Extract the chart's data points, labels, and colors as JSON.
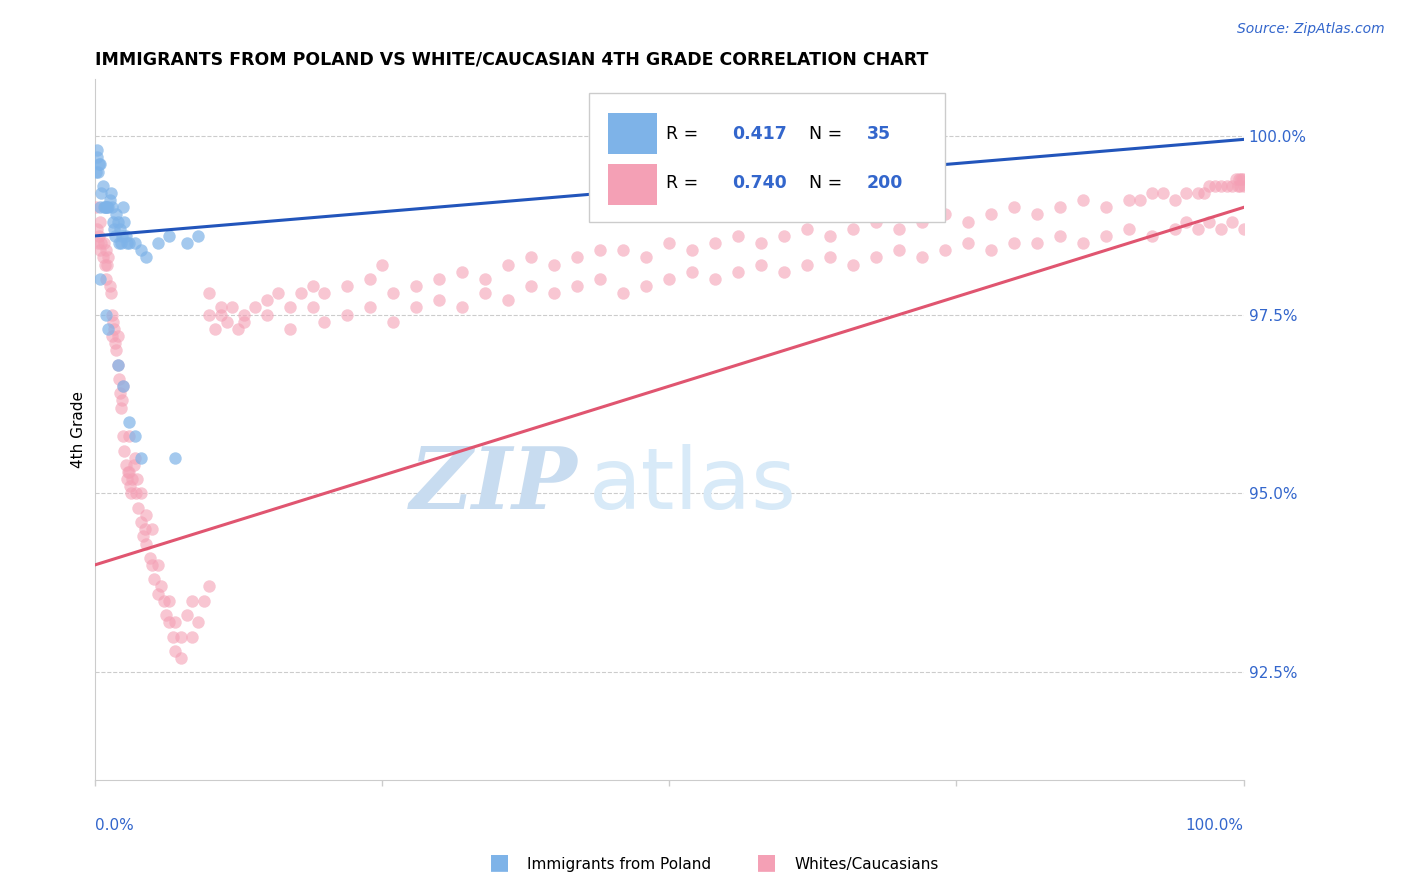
{
  "title": "IMMIGRANTS FROM POLAND VS WHITE/CAUCASIAN 4TH GRADE CORRELATION CHART",
  "source": "Source: ZipAtlas.com",
  "ylabel": "4th Grade",
  "ytick_labels": [
    "100.0%",
    "97.5%",
    "95.0%",
    "92.5%"
  ],
  "ytick_values": [
    100.0,
    97.5,
    95.0,
    92.5
  ],
  "xlim": [
    0.0,
    100.0
  ],
  "ylim": [
    91.0,
    100.8
  ],
  "legend_blue_R": "0.417",
  "legend_blue_N": "35",
  "legend_pink_R": "0.740",
  "legend_pink_N": "200",
  "legend_label_blue": "Immigrants from Poland",
  "legend_label_pink": "Whites/Caucasians",
  "blue_color": "#7EB3E8",
  "pink_color": "#F4A0B5",
  "blue_line_color": "#2255BB",
  "pink_line_color": "#E05570",
  "watermark_zip": "ZIP",
  "watermark_atlas": "atlas",
  "blue_scatter": [
    [
      0.2,
      99.8
    ],
    [
      0.3,
      99.5
    ],
    [
      0.4,
      99.6
    ],
    [
      0.45,
      99.6
    ],
    [
      0.5,
      99.0
    ],
    [
      0.6,
      99.2
    ],
    [
      0.7,
      99.3
    ],
    [
      0.8,
      99.0
    ],
    [
      0.9,
      99.0
    ],
    [
      1.0,
      99.0
    ],
    [
      1.1,
      99.0
    ],
    [
      1.2,
      99.0
    ],
    [
      1.3,
      99.1
    ],
    [
      1.4,
      99.2
    ],
    [
      1.5,
      99.0
    ],
    [
      1.6,
      98.8
    ],
    [
      1.7,
      98.7
    ],
    [
      1.8,
      98.6
    ],
    [
      1.9,
      98.9
    ],
    [
      2.0,
      98.8
    ],
    [
      2.1,
      98.5
    ],
    [
      2.2,
      98.7
    ],
    [
      2.3,
      98.5
    ],
    [
      2.4,
      98.6
    ],
    [
      2.5,
      99.0
    ],
    [
      2.6,
      98.8
    ],
    [
      2.7,
      98.6
    ],
    [
      2.8,
      98.5
    ],
    [
      3.0,
      98.5
    ],
    [
      3.5,
      98.5
    ],
    [
      4.0,
      98.4
    ],
    [
      4.5,
      98.3
    ],
    [
      5.5,
      98.5
    ],
    [
      6.5,
      98.6
    ],
    [
      7.0,
      95.5
    ],
    [
      8.0,
      98.5
    ],
    [
      9.0,
      98.6
    ],
    [
      0.15,
      99.5
    ],
    [
      0.18,
      99.7
    ],
    [
      1.0,
      97.5
    ],
    [
      1.2,
      97.3
    ],
    [
      2.0,
      96.8
    ],
    [
      2.5,
      96.5
    ],
    [
      3.0,
      96.0
    ],
    [
      3.5,
      95.8
    ],
    [
      4.0,
      95.5
    ],
    [
      0.5,
      98.0
    ]
  ],
  "pink_scatter": [
    [
      0.1,
      99.0
    ],
    [
      0.2,
      98.7
    ],
    [
      0.3,
      98.5
    ],
    [
      0.4,
      98.6
    ],
    [
      0.5,
      98.8
    ],
    [
      0.5,
      98.4
    ],
    [
      0.6,
      98.5
    ],
    [
      0.7,
      98.3
    ],
    [
      0.8,
      98.5
    ],
    [
      0.9,
      98.2
    ],
    [
      1.0,
      98.4
    ],
    [
      1.0,
      98.0
    ],
    [
      1.1,
      98.2
    ],
    [
      1.2,
      98.3
    ],
    [
      1.3,
      97.9
    ],
    [
      1.4,
      97.8
    ],
    [
      1.5,
      97.5
    ],
    [
      1.5,
      97.2
    ],
    [
      1.6,
      97.4
    ],
    [
      1.7,
      97.3
    ],
    [
      1.8,
      97.1
    ],
    [
      1.9,
      97.0
    ],
    [
      2.0,
      97.2
    ],
    [
      2.0,
      96.8
    ],
    [
      2.1,
      96.6
    ],
    [
      2.2,
      96.4
    ],
    [
      2.3,
      96.2
    ],
    [
      2.4,
      96.3
    ],
    [
      2.5,
      96.5
    ],
    [
      2.5,
      95.8
    ],
    [
      2.6,
      95.6
    ],
    [
      2.7,
      95.4
    ],
    [
      2.8,
      95.2
    ],
    [
      2.9,
      95.3
    ],
    [
      3.0,
      95.8
    ],
    [
      3.0,
      95.3
    ],
    [
      3.1,
      95.1
    ],
    [
      3.2,
      95.0
    ],
    [
      3.3,
      95.2
    ],
    [
      3.4,
      95.4
    ],
    [
      3.5,
      95.5
    ],
    [
      3.6,
      95.0
    ],
    [
      3.7,
      95.2
    ],
    [
      3.8,
      94.8
    ],
    [
      4.0,
      95.0
    ],
    [
      4.0,
      94.6
    ],
    [
      4.2,
      94.4
    ],
    [
      4.4,
      94.5
    ],
    [
      4.5,
      94.7
    ],
    [
      4.5,
      94.3
    ],
    [
      4.8,
      94.1
    ],
    [
      5.0,
      94.5
    ],
    [
      5.0,
      94.0
    ],
    [
      5.2,
      93.8
    ],
    [
      5.5,
      94.0
    ],
    [
      5.5,
      93.6
    ],
    [
      5.8,
      93.7
    ],
    [
      6.0,
      93.5
    ],
    [
      6.2,
      93.3
    ],
    [
      6.5,
      93.5
    ],
    [
      6.5,
      93.2
    ],
    [
      6.8,
      93.0
    ],
    [
      7.0,
      93.2
    ],
    [
      7.0,
      92.8
    ],
    [
      7.5,
      93.0
    ],
    [
      7.5,
      92.7
    ],
    [
      8.0,
      93.3
    ],
    [
      8.5,
      93.5
    ],
    [
      8.5,
      93.0
    ],
    [
      9.0,
      93.2
    ],
    [
      9.5,
      93.5
    ],
    [
      10.0,
      93.7
    ],
    [
      10.0,
      97.5
    ],
    [
      10.5,
      97.3
    ],
    [
      11.0,
      97.5
    ],
    [
      11.5,
      97.4
    ],
    [
      12.0,
      97.6
    ],
    [
      12.5,
      97.3
    ],
    [
      13.0,
      97.5
    ],
    [
      14.0,
      97.6
    ],
    [
      15.0,
      97.7
    ],
    [
      16.0,
      97.8
    ],
    [
      17.0,
      97.6
    ],
    [
      18.0,
      97.8
    ],
    [
      19.0,
      97.9
    ],
    [
      20.0,
      97.8
    ],
    [
      22.0,
      97.9
    ],
    [
      24.0,
      98.0
    ],
    [
      25.0,
      98.2
    ],
    [
      26.0,
      97.8
    ],
    [
      28.0,
      97.9
    ],
    [
      30.0,
      98.0
    ],
    [
      32.0,
      98.1
    ],
    [
      34.0,
      98.0
    ],
    [
      36.0,
      98.2
    ],
    [
      38.0,
      98.3
    ],
    [
      40.0,
      98.2
    ],
    [
      42.0,
      98.3
    ],
    [
      44.0,
      98.4
    ],
    [
      46.0,
      98.4
    ],
    [
      48.0,
      98.3
    ],
    [
      50.0,
      98.5
    ],
    [
      52.0,
      98.4
    ],
    [
      54.0,
      98.5
    ],
    [
      56.0,
      98.6
    ],
    [
      58.0,
      98.5
    ],
    [
      60.0,
      98.6
    ],
    [
      62.0,
      98.7
    ],
    [
      64.0,
      98.6
    ],
    [
      66.0,
      98.7
    ],
    [
      68.0,
      98.8
    ],
    [
      70.0,
      98.7
    ],
    [
      72.0,
      98.8
    ],
    [
      74.0,
      98.9
    ],
    [
      76.0,
      98.8
    ],
    [
      78.0,
      98.9
    ],
    [
      80.0,
      99.0
    ],
    [
      82.0,
      98.9
    ],
    [
      84.0,
      99.0
    ],
    [
      86.0,
      99.1
    ],
    [
      88.0,
      99.0
    ],
    [
      90.0,
      99.1
    ],
    [
      91.0,
      99.1
    ],
    [
      92.0,
      99.2
    ],
    [
      93.0,
      99.2
    ],
    [
      94.0,
      99.1
    ],
    [
      95.0,
      99.2
    ],
    [
      96.0,
      99.2
    ],
    [
      96.5,
      99.2
    ],
    [
      97.0,
      99.3
    ],
    [
      97.5,
      99.3
    ],
    [
      98.0,
      99.3
    ],
    [
      98.5,
      99.3
    ],
    [
      99.0,
      99.3
    ],
    [
      99.3,
      99.4
    ],
    [
      99.5,
      99.3
    ],
    [
      99.6,
      99.4
    ],
    [
      99.7,
      99.3
    ],
    [
      99.8,
      99.4
    ],
    [
      99.9,
      99.4
    ],
    [
      100.0,
      99.3
    ],
    [
      10.0,
      97.8
    ],
    [
      11.0,
      97.6
    ],
    [
      13.0,
      97.4
    ],
    [
      15.0,
      97.5
    ],
    [
      17.0,
      97.3
    ],
    [
      19.0,
      97.6
    ],
    [
      20.0,
      97.4
    ],
    [
      22.0,
      97.5
    ],
    [
      24.0,
      97.6
    ],
    [
      26.0,
      97.4
    ],
    [
      28.0,
      97.6
    ],
    [
      30.0,
      97.7
    ],
    [
      32.0,
      97.6
    ],
    [
      34.0,
      97.8
    ],
    [
      36.0,
      97.7
    ],
    [
      38.0,
      97.9
    ],
    [
      40.0,
      97.8
    ],
    [
      42.0,
      97.9
    ],
    [
      44.0,
      98.0
    ],
    [
      46.0,
      97.8
    ],
    [
      48.0,
      97.9
    ],
    [
      50.0,
      98.0
    ],
    [
      52.0,
      98.1
    ],
    [
      54.0,
      98.0
    ],
    [
      56.0,
      98.1
    ],
    [
      58.0,
      98.2
    ],
    [
      60.0,
      98.1
    ],
    [
      62.0,
      98.2
    ],
    [
      64.0,
      98.3
    ],
    [
      66.0,
      98.2
    ],
    [
      68.0,
      98.3
    ],
    [
      70.0,
      98.4
    ],
    [
      72.0,
      98.3
    ],
    [
      74.0,
      98.4
    ],
    [
      76.0,
      98.5
    ],
    [
      78.0,
      98.4
    ],
    [
      80.0,
      98.5
    ],
    [
      82.0,
      98.5
    ],
    [
      84.0,
      98.6
    ],
    [
      86.0,
      98.5
    ],
    [
      88.0,
      98.6
    ],
    [
      90.0,
      98.7
    ],
    [
      92.0,
      98.6
    ],
    [
      94.0,
      98.7
    ],
    [
      95.0,
      98.8
    ],
    [
      96.0,
      98.7
    ],
    [
      97.0,
      98.8
    ],
    [
      98.0,
      98.7
    ],
    [
      99.0,
      98.8
    ],
    [
      100.0,
      98.7
    ]
  ],
  "blue_line": [
    [
      0.0,
      98.6
    ],
    [
      100.0,
      99.95
    ]
  ],
  "pink_line": [
    [
      0.0,
      94.0
    ],
    [
      100.0,
      99.0
    ]
  ]
}
